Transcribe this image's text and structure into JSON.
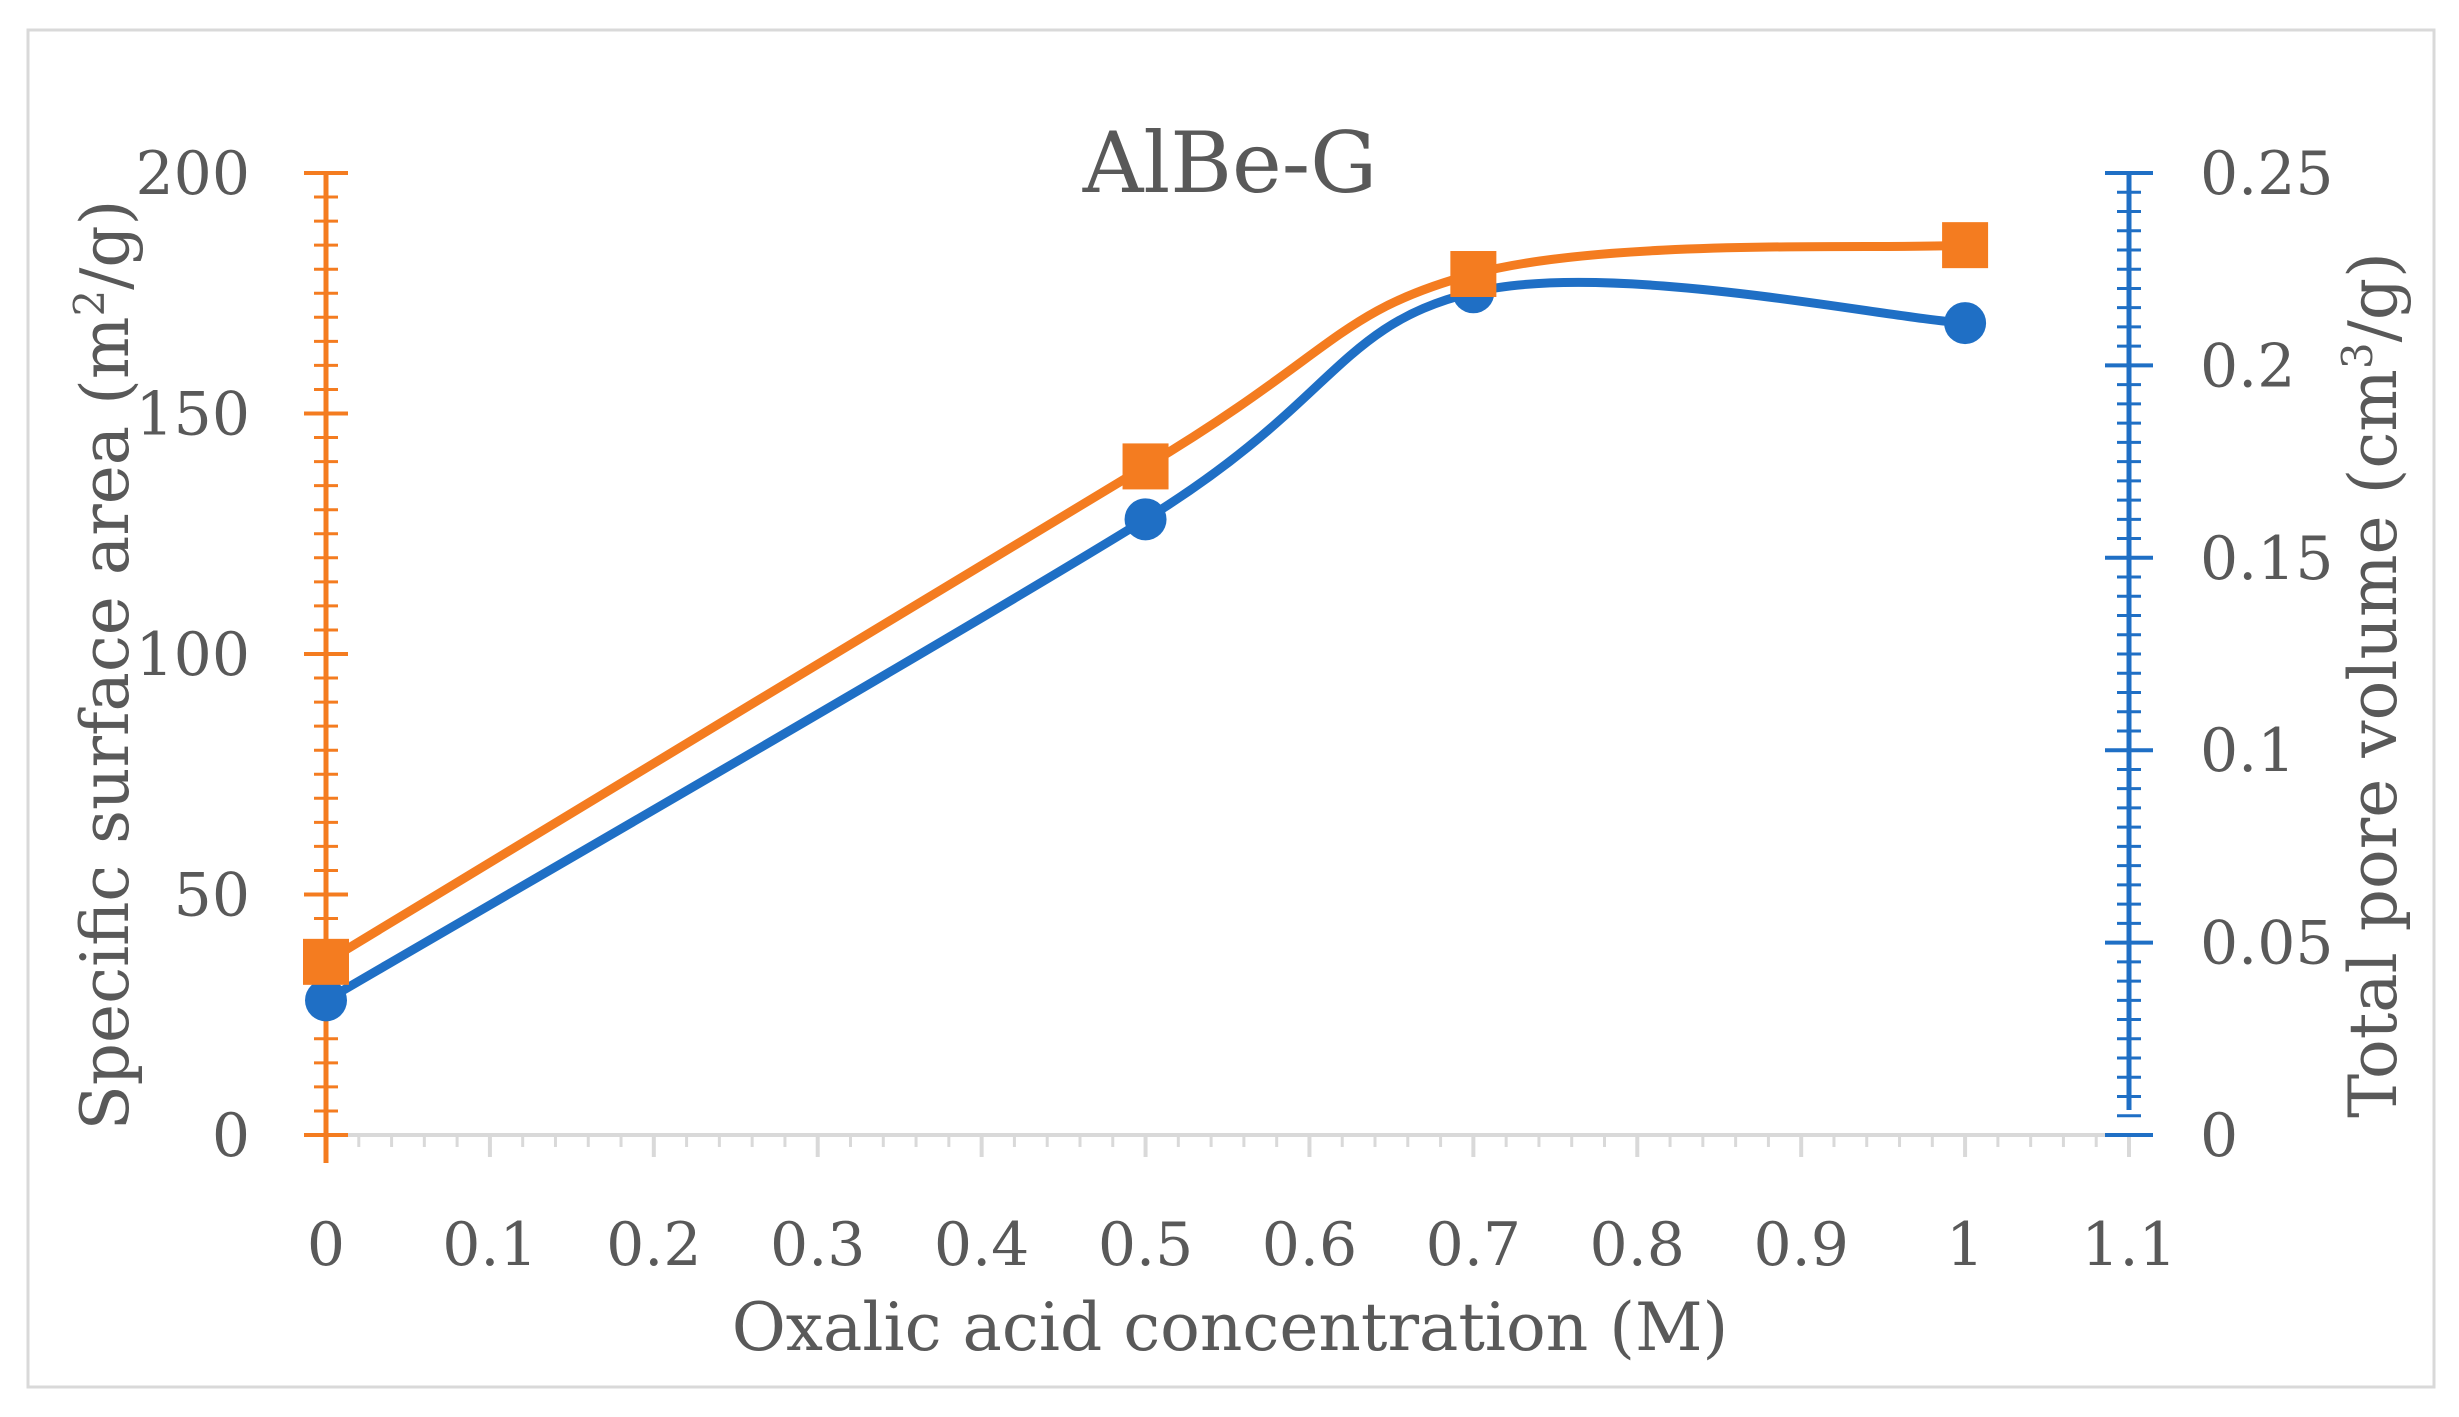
{
  "chart_data": {
    "type": "line",
    "title": "AlBe-G",
    "xlabel": "Oxalic acid concentration (M)",
    "ylabel_left": {
      "main": "Specific surface area (m",
      "sup": "2",
      "tail": "/g)"
    },
    "ylabel_right": {
      "main": "Total pore volume (cm",
      "sup": "3",
      "tail": "/g)"
    },
    "xlim": [
      0,
      1.1
    ],
    "ylim_left": [
      0,
      200
    ],
    "ylim_right": [
      0,
      0.25
    ],
    "x_ticks": [
      "0",
      "0.1",
      "0.2",
      "0.3",
      "0.4",
      "0.5",
      "0.6",
      "0.7",
      "0.8",
      "0.9",
      "1",
      "1.1"
    ],
    "y_left_ticks": [
      "0",
      "50",
      "100",
      "150",
      "200"
    ],
    "y_right_ticks": [
      "0",
      "0.05",
      "0.1",
      "0.15",
      "0.2",
      "0.25"
    ],
    "grid": false,
    "legend": "none",
    "series": [
      {
        "axis": "left",
        "marker": "square",
        "color": "#F47C20",
        "x": [
          0,
          0.5,
          0.7,
          1
        ],
        "y": [
          36,
          139,
          179,
          185
        ]
      },
      {
        "axis": "right",
        "marker": "circle",
        "color": "#1F6FC5",
        "x": [
          0,
          0.5,
          0.7,
          1
        ],
        "y": [
          0.035,
          0.16,
          0.219,
          0.211
        ]
      }
    ]
  }
}
